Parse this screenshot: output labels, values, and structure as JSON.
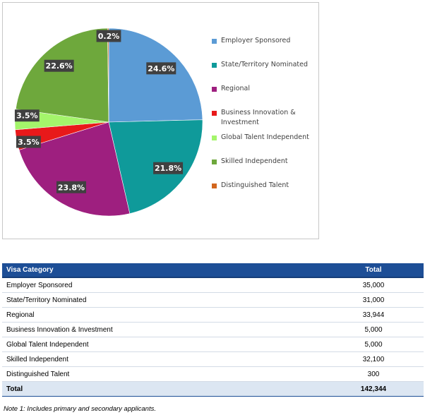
{
  "chart_data": {
    "type": "pie",
    "title": "",
    "categories": [
      "Employer Sponsored",
      "State/Territory Nominated",
      "Regional",
      "Business Innovation & Investment",
      "Global Talent Independent",
      "Skilled Independent",
      "Distinguished Talent"
    ],
    "values": [
      24.6,
      21.8,
      23.8,
      3.5,
      3.5,
      22.6,
      0.2
    ],
    "data_labels": [
      "24.6%",
      "21.8%",
      "23.8%",
      "3.5%",
      "3.5%",
      "22.6%",
      "0.2%"
    ],
    "colors": [
      "#5b9bd5",
      "#0f9a9a",
      "#9e1f7f",
      "#e8191a",
      "#a4f56b",
      "#6ea83c",
      "#d2661e"
    ],
    "legend_position": "right",
    "legend": [
      "Employer Sponsored",
      "State/Territory Nominated",
      "Regional",
      "Business Innovation & Investment",
      "Global Talent Independent",
      "Skilled Independent",
      "Distinguished Talent"
    ]
  },
  "table": {
    "headers": {
      "category": "Visa Category",
      "total": "Total"
    },
    "rows": [
      {
        "category": "Employer Sponsored",
        "total": "35,000"
      },
      {
        "category": "State/Territory Nominated",
        "total": "31,000"
      },
      {
        "category": "Regional",
        "total": "33,944"
      },
      {
        "category": "Business Innovation & Investment",
        "total": "5,000"
      },
      {
        "category": "Global Talent Independent",
        "total": "5,000"
      },
      {
        "category": "Skilled Independent",
        "total": "32,100"
      },
      {
        "category": "Distinguished Talent",
        "total": "300"
      }
    ],
    "total_row": {
      "category": "Total",
      "total": "142,344"
    }
  },
  "footnote": "Note 1: Includes primary and secondary applicants."
}
